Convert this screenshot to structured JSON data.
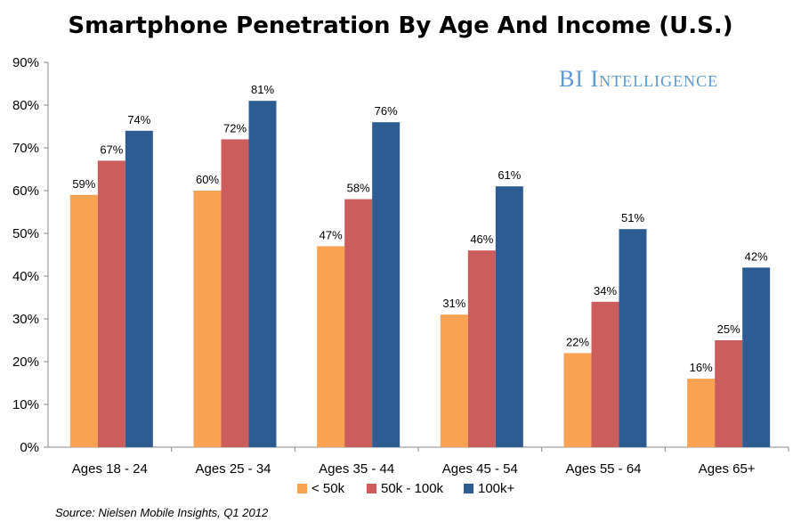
{
  "title": "Smartphone Penetration By Age And Income (U.S.)",
  "brand": "BI Intelligence",
  "source": "Source: Nielsen Mobile Insights, Q1 2012",
  "colors": {
    "lt50k": "#f9a251",
    "50k100k": "#cd5c5c",
    "100kplus": "#2d5c93",
    "axis": "#888888"
  },
  "chart_data": {
    "type": "bar",
    "title": "Smartphone Penetration By Age And Income (U.S.)",
    "categories": [
      "Ages 18 - 24",
      "Ages 25 - 34",
      "Ages 35 - 44",
      "Ages 45 - 54",
      "Ages 55 - 64",
      "Ages 65+"
    ],
    "series": [
      {
        "name": "< 50k",
        "values": [
          59,
          60,
          47,
          31,
          22,
          16
        ],
        "labels": [
          "59%",
          "60%",
          "47%",
          "31%",
          "22%",
          "16%"
        ],
        "color": "#f9a251"
      },
      {
        "name": "50k - 100k",
        "values": [
          67,
          72,
          58,
          46,
          34,
          25
        ],
        "labels": [
          "67%",
          "72%",
          "58%",
          "46%",
          "34%",
          "25%"
        ],
        "color": "#cd5c5c"
      },
      {
        "name": "100k+",
        "values": [
          74,
          81,
          76,
          61,
          51,
          42
        ],
        "labels": [
          "74%",
          "81%",
          "76%",
          "61%",
          "51%",
          "42%"
        ],
        "color": "#2d5c93"
      }
    ],
    "yticks": [
      "0%",
      "10%",
      "20%",
      "30%",
      "40%",
      "50%",
      "60%",
      "70%",
      "80%",
      "90%"
    ],
    "ylim": [
      0,
      90
    ],
    "unit": "%",
    "grid": false,
    "legend": "bottom"
  }
}
